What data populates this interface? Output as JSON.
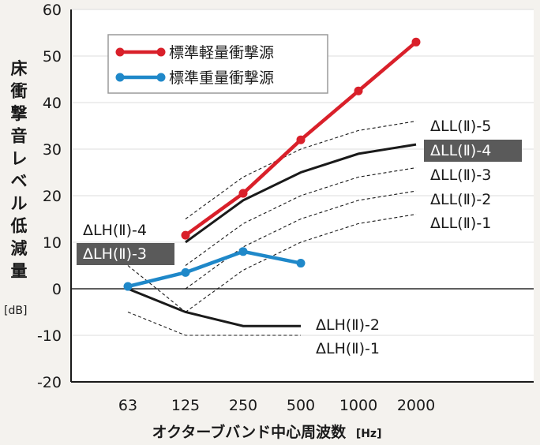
{
  "chart_data": {
    "type": "line",
    "categories": [
      "63",
      "125",
      "250",
      "500",
      "1000",
      "2000"
    ],
    "ylim": [
      -20,
      60
    ],
    "yticks": [
      -20,
      -10,
      0,
      10,
      20,
      30,
      40,
      50,
      60
    ],
    "ylabel": "床衝撃音レベル低減量",
    "yunit": "[dB]",
    "xlabel": "オクターブバンド中心周波数",
    "xunit": "[Hz]",
    "legend_position": "top-left",
    "series": [
      {
        "name": "標準軽量衝撃源",
        "color": "#d9202a",
        "x": [
          "125",
          "250",
          "500",
          "1000",
          "2000"
        ],
        "values": [
          11.5,
          20.5,
          32,
          42.5,
          53
        ]
      },
      {
        "name": "標準重量衝撃源",
        "color": "#1f88c9",
        "x": [
          "63",
          "125",
          "250",
          "500"
        ],
        "values": [
          0.5,
          3.5,
          8,
          5.5
        ]
      }
    ],
    "reference_curves": [
      {
        "label": "ΔLL(Ⅱ)-5",
        "style": "dashed",
        "highlight": false,
        "x": [
          "125",
          "250",
          "500",
          "1000",
          "2000"
        ],
        "values": [
          15,
          24,
          30,
          34,
          36
        ]
      },
      {
        "label": "ΔLL(Ⅱ)-4",
        "style": "solid",
        "highlight": true,
        "x": [
          "125",
          "250",
          "500",
          "1000",
          "2000"
        ],
        "values": [
          10,
          19,
          25,
          29,
          31
        ]
      },
      {
        "label": "ΔLL(Ⅱ)-3",
        "style": "dashed",
        "highlight": false,
        "x": [
          "125",
          "250",
          "500",
          "1000",
          "2000"
        ],
        "values": [
          5,
          14,
          20,
          24,
          26
        ]
      },
      {
        "label": "ΔLL(Ⅱ)-2",
        "style": "dashed",
        "highlight": false,
        "x": [
          "125",
          "250",
          "500",
          "1000",
          "2000"
        ],
        "values": [
          0,
          9,
          15,
          19,
          21
        ]
      },
      {
        "label": "ΔLL(Ⅱ)-1",
        "style": "dashed",
        "highlight": false,
        "x": [
          "125",
          "250",
          "500",
          "1000",
          "2000"
        ],
        "values": [
          -5,
          4,
          10,
          14,
          16
        ]
      },
      {
        "label": "ΔLH(Ⅱ)-4",
        "style": "dashed",
        "highlight": false,
        "x": [
          "63",
          "125"
        ],
        "values": [
          5,
          -5
        ]
      },
      {
        "label": "ΔLH(Ⅱ)-3",
        "style": "dashed",
        "highlight": true,
        "x": [
          "63",
          "125"
        ],
        "values": [
          0,
          -5
        ]
      },
      {
        "label": "ΔLH(Ⅱ)-2",
        "style": "solid",
        "highlight": false,
        "x": [
          "63",
          "125",
          "250",
          "500"
        ],
        "values": [
          0,
          -5,
          -8,
          -8
        ]
      },
      {
        "label": "ΔLH(Ⅱ)-1",
        "style": "dashed",
        "highlight": false,
        "x": [
          "63",
          "125",
          "250",
          "500"
        ],
        "values": [
          -5,
          -10,
          -10,
          -10
        ]
      }
    ]
  }
}
